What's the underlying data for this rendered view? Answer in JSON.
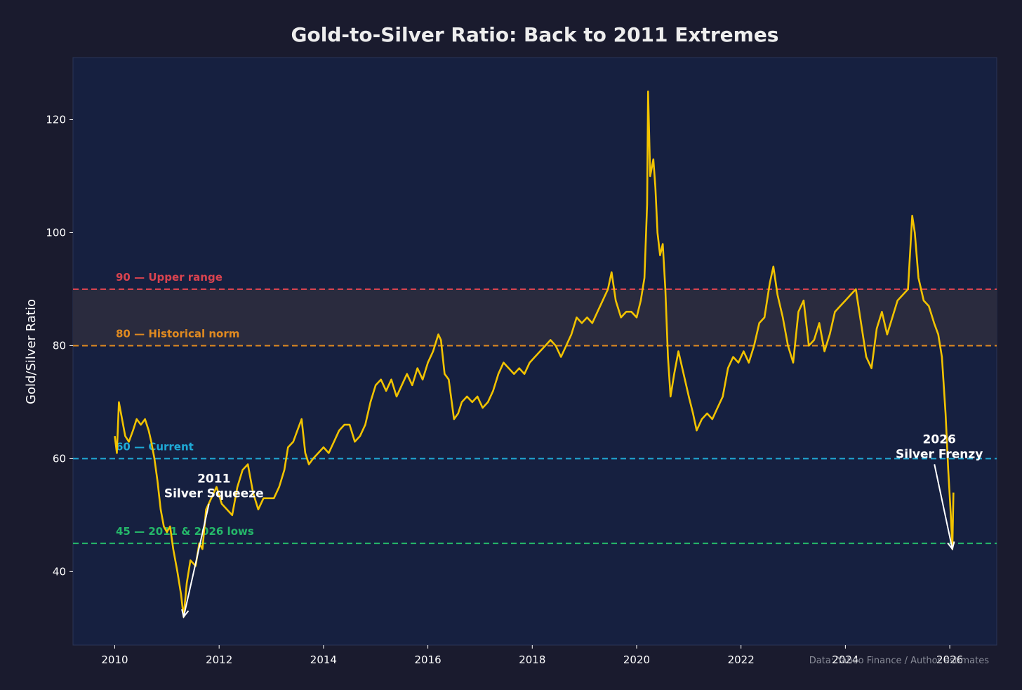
{
  "chart_data": {
    "type": "line",
    "title": "Gold-to-Silver Ratio: Back to 2011 Extremes",
    "xlabel": "",
    "ylabel": "Gold/Silver Ratio",
    "xlim": [
      2009.2,
      2026.9
    ],
    "ylim": [
      27,
      131
    ],
    "x_ticks": [
      2010,
      2012,
      2014,
      2016,
      2018,
      2020,
      2022,
      2024,
      2026
    ],
    "y_ticks": [
      40,
      60,
      80,
      100,
      120
    ],
    "series": [
      {
        "name": "Gold/Silver Ratio",
        "color": "#f2c300",
        "points": [
          [
            2010.0,
            64
          ],
          [
            2010.04,
            61
          ],
          [
            2010.08,
            70
          ],
          [
            2010.14,
            67
          ],
          [
            2010.2,
            64
          ],
          [
            2010.27,
            63
          ],
          [
            2010.35,
            65
          ],
          [
            2010.42,
            67
          ],
          [
            2010.5,
            66
          ],
          [
            2010.58,
            67
          ],
          [
            2010.65,
            65
          ],
          [
            2010.7,
            63
          ],
          [
            2010.76,
            60
          ],
          [
            2010.82,
            56
          ],
          [
            2010.88,
            51
          ],
          [
            2010.94,
            48
          ],
          [
            2011.0,
            47
          ],
          [
            2011.06,
            48
          ],
          [
            2011.12,
            44
          ],
          [
            2011.2,
            40
          ],
          [
            2011.27,
            36
          ],
          [
            2011.32,
            32
          ],
          [
            2011.38,
            38
          ],
          [
            2011.45,
            42
          ],
          [
            2011.55,
            41
          ],
          [
            2011.62,
            45
          ],
          [
            2011.68,
            44
          ],
          [
            2011.75,
            51
          ],
          [
            2011.85,
            53
          ],
          [
            2011.95,
            55
          ],
          [
            2012.05,
            52
          ],
          [
            2012.15,
            51
          ],
          [
            2012.25,
            50
          ],
          [
            2012.35,
            55
          ],
          [
            2012.45,
            58
          ],
          [
            2012.55,
            59
          ],
          [
            2012.65,
            54
          ],
          [
            2012.75,
            51
          ],
          [
            2012.85,
            53
          ],
          [
            2012.95,
            53
          ],
          [
            2013.05,
            53
          ],
          [
            2013.15,
            55
          ],
          [
            2013.25,
            58
          ],
          [
            2013.32,
            62
          ],
          [
            2013.42,
            63
          ],
          [
            2013.5,
            65
          ],
          [
            2013.58,
            67
          ],
          [
            2013.65,
            61
          ],
          [
            2013.72,
            59
          ],
          [
            2013.8,
            60
          ],
          [
            2013.9,
            61
          ],
          [
            2014.0,
            62
          ],
          [
            2014.1,
            61
          ],
          [
            2014.2,
            63
          ],
          [
            2014.3,
            65
          ],
          [
            2014.4,
            66
          ],
          [
            2014.5,
            66
          ],
          [
            2014.6,
            63
          ],
          [
            2014.7,
            64
          ],
          [
            2014.8,
            66
          ],
          [
            2014.9,
            70
          ],
          [
            2015.0,
            73
          ],
          [
            2015.1,
            74
          ],
          [
            2015.2,
            72
          ],
          [
            2015.3,
            74
          ],
          [
            2015.4,
            71
          ],
          [
            2015.5,
            73
          ],
          [
            2015.6,
            75
          ],
          [
            2015.7,
            73
          ],
          [
            2015.8,
            76
          ],
          [
            2015.9,
            74
          ],
          [
            2016.0,
            77
          ],
          [
            2016.1,
            79
          ],
          [
            2016.2,
            82
          ],
          [
            2016.25,
            81
          ],
          [
            2016.32,
            75
          ],
          [
            2016.4,
            74
          ],
          [
            2016.5,
            67
          ],
          [
            2016.58,
            68
          ],
          [
            2016.65,
            70
          ],
          [
            2016.75,
            71
          ],
          [
            2016.85,
            70
          ],
          [
            2016.95,
            71
          ],
          [
            2017.05,
            69
          ],
          [
            2017.15,
            70
          ],
          [
            2017.25,
            72
          ],
          [
            2017.35,
            75
          ],
          [
            2017.45,
            77
          ],
          [
            2017.55,
            76
          ],
          [
            2017.65,
            75
          ],
          [
            2017.75,
            76
          ],
          [
            2017.85,
            75
          ],
          [
            2017.95,
            77
          ],
          [
            2018.05,
            78
          ],
          [
            2018.15,
            79
          ],
          [
            2018.25,
            80
          ],
          [
            2018.35,
            81
          ],
          [
            2018.45,
            80
          ],
          [
            2018.55,
            78
          ],
          [
            2018.65,
            80
          ],
          [
            2018.75,
            82
          ],
          [
            2018.85,
            85
          ],
          [
            2018.95,
            84
          ],
          [
            2019.05,
            85
          ],
          [
            2019.15,
            84
          ],
          [
            2019.25,
            86
          ],
          [
            2019.35,
            88
          ],
          [
            2019.45,
            90
          ],
          [
            2019.52,
            93
          ],
          [
            2019.6,
            88
          ],
          [
            2019.7,
            85
          ],
          [
            2019.8,
            86
          ],
          [
            2019.9,
            86
          ],
          [
            2020.0,
            85
          ],
          [
            2020.08,
            88
          ],
          [
            2020.15,
            92
          ],
          [
            2020.2,
            105
          ],
          [
            2020.22,
            125
          ],
          [
            2020.26,
            110
          ],
          [
            2020.32,
            113
          ],
          [
            2020.36,
            108
          ],
          [
            2020.4,
            100
          ],
          [
            2020.45,
            96
          ],
          [
            2020.5,
            98
          ],
          [
            2020.55,
            90
          ],
          [
            2020.6,
            78
          ],
          [
            2020.65,
            71
          ],
          [
            2020.72,
            75
          ],
          [
            2020.8,
            79
          ],
          [
            2020.9,
            75
          ],
          [
            2021.0,
            71
          ],
          [
            2021.08,
            68
          ],
          [
            2021.15,
            65
          ],
          [
            2021.25,
            67
          ],
          [
            2021.35,
            68
          ],
          [
            2021.45,
            67
          ],
          [
            2021.55,
            69
          ],
          [
            2021.65,
            71
          ],
          [
            2021.75,
            76
          ],
          [
            2021.85,
            78
          ],
          [
            2021.95,
            77
          ],
          [
            2022.05,
            79
          ],
          [
            2022.15,
            77
          ],
          [
            2022.25,
            80
          ],
          [
            2022.35,
            84
          ],
          [
            2022.45,
            85
          ],
          [
            2022.55,
            91
          ],
          [
            2022.62,
            94
          ],
          [
            2022.7,
            89
          ],
          [
            2022.8,
            85
          ],
          [
            2022.9,
            80
          ],
          [
            2023.0,
            77
          ],
          [
            2023.1,
            86
          ],
          [
            2023.2,
            88
          ],
          [
            2023.3,
            80
          ],
          [
            2023.4,
            81
          ],
          [
            2023.5,
            84
          ],
          [
            2023.6,
            79
          ],
          [
            2023.7,
            82
          ],
          [
            2023.8,
            86
          ],
          [
            2023.9,
            87
          ],
          [
            2024.0,
            88
          ],
          [
            2024.1,
            89
          ],
          [
            2024.2,
            90
          ],
          [
            2024.3,
            84
          ],
          [
            2024.4,
            78
          ],
          [
            2024.5,
            76
          ],
          [
            2024.6,
            83
          ],
          [
            2024.7,
            86
          ],
          [
            2024.8,
            82
          ],
          [
            2024.9,
            85
          ],
          [
            2025.0,
            88
          ],
          [
            2025.1,
            89
          ],
          [
            2025.2,
            90
          ],
          [
            2025.28,
            103
          ],
          [
            2025.33,
            100
          ],
          [
            2025.4,
            92
          ],
          [
            2025.5,
            88
          ],
          [
            2025.6,
            87
          ],
          [
            2025.7,
            84
          ],
          [
            2025.78,
            82
          ],
          [
            2025.85,
            78
          ],
          [
            2025.92,
            68
          ],
          [
            2025.97,
            58
          ],
          [
            2026.02,
            50
          ],
          [
            2026.05,
            44
          ],
          [
            2026.07,
            54
          ]
        ]
      }
    ],
    "reference_lines": [
      {
        "value": 90,
        "label": "90 — Upper range",
        "color": "#d9434f"
      },
      {
        "value": 80,
        "label": "80 — Historical norm",
        "color": "#e08a20"
      },
      {
        "value": 60,
        "label": "60 — Current",
        "color": "#1fa9d6"
      },
      {
        "value": 45,
        "label": "45 — 2011 & 2026 lows",
        "color": "#25b86a"
      }
    ],
    "shaded_band": {
      "from": 80,
      "to": 90,
      "color": "#2a2b3e"
    },
    "annotations": [
      {
        "lines": [
          "2011",
          "Silver Squeeze"
        ],
        "text_at": [
          2011.9,
          54
        ],
        "arrow_to": [
          2011.32,
          32
        ]
      },
      {
        "lines": [
          "2026",
          "Silver Frenzy"
        ],
        "text_at": [
          2025.8,
          61
        ],
        "arrow_to": [
          2026.05,
          44
        ]
      }
    ],
    "source_note": "Data: Yahoo Finance / Author estimates",
    "colors": {
      "background": "#1a1b2e",
      "plot_background": "#162040"
    }
  }
}
